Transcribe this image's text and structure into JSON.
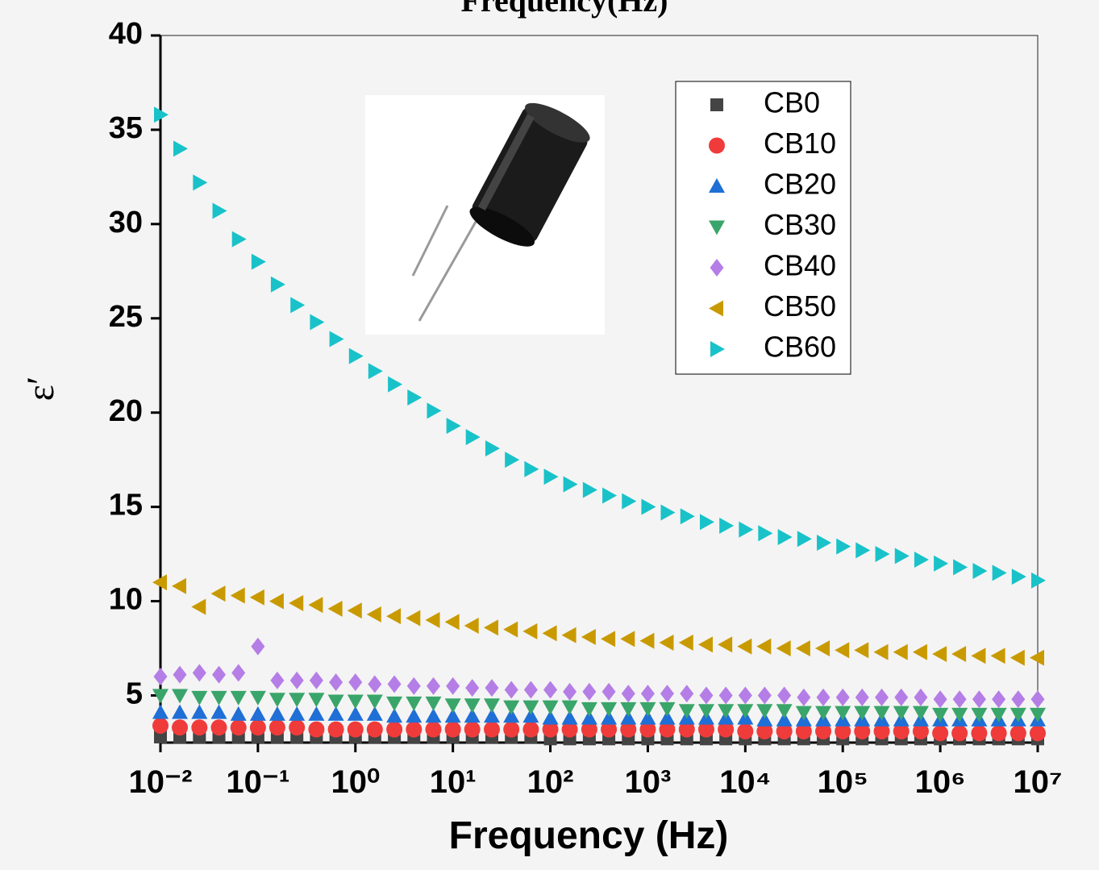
{
  "chart_data": {
    "type": "scatter",
    "title": "Frequency(Hz)",
    "x_label": "Frequency (Hz)",
    "y_label": "ε′",
    "x_log": true,
    "xlim": [
      0.01,
      10000000
    ],
    "ylim": [
      2.5,
      40
    ],
    "xticks": [
      {
        "value": 0.01,
        "label": "10⁻²"
      },
      {
        "value": 0.1,
        "label": "10⁻¹"
      },
      {
        "value": 1,
        "label": "10⁰"
      },
      {
        "value": 10,
        "label": "10¹"
      },
      {
        "value": 100,
        "label": "10²"
      },
      {
        "value": 1000,
        "label": "10³"
      },
      {
        "value": 10000,
        "label": "10⁴"
      },
      {
        "value": 100000,
        "label": "10⁵"
      },
      {
        "value": 1000000,
        "label": "10⁶"
      },
      {
        "value": 10000000,
        "label": "10⁷"
      }
    ],
    "yticks": [
      5,
      10,
      15,
      20,
      25,
      30,
      35,
      40
    ],
    "legend": "top-right",
    "x": [
      0.01,
      0.0158,
      0.0251,
      0.0398,
      0.0631,
      0.1,
      0.158,
      0.251,
      0.398,
      0.631,
      1,
      1.58,
      2.51,
      3.98,
      6.31,
      10,
      15.8,
      25.1,
      39.8,
      63.1,
      100,
      158,
      251,
      398,
      631,
      1000,
      1580,
      2510,
      3980,
      6310,
      10000,
      15800,
      25100,
      39800,
      63100,
      100000,
      158000,
      251000,
      398000,
      631000,
      1000000,
      1580000,
      2510000,
      3980000,
      6310000,
      10000000
    ],
    "series": [
      {
        "name": "CB0",
        "color": "#444444",
        "marker": "square",
        "values": [
          2.8,
          2.8,
          2.8,
          2.8,
          2.8,
          2.8,
          2.8,
          2.8,
          2.8,
          2.8,
          2.8,
          2.8,
          2.8,
          2.8,
          2.8,
          2.8,
          2.8,
          2.8,
          2.8,
          2.8,
          2.7,
          2.7,
          2.7,
          2.7,
          2.7,
          2.7,
          2.7,
          2.7,
          2.7,
          2.7,
          2.7,
          2.7,
          2.7,
          2.7,
          2.7,
          2.7,
          2.7,
          2.7,
          2.7,
          2.7,
          2.7,
          2.7,
          2.7,
          2.7,
          2.7,
          2.7
        ]
      },
      {
        "name": "CB10",
        "color": "#f03b3b",
        "marker": "circle",
        "values": [
          3.4,
          3.3,
          3.3,
          3.3,
          3.3,
          3.3,
          3.3,
          3.3,
          3.2,
          3.2,
          3.2,
          3.2,
          3.2,
          3.2,
          3.2,
          3.2,
          3.2,
          3.2,
          3.2,
          3.2,
          3.2,
          3.2,
          3.2,
          3.2,
          3.2,
          3.2,
          3.2,
          3.2,
          3.2,
          3.2,
          3.1,
          3.1,
          3.1,
          3.1,
          3.1,
          3.1,
          3.1,
          3.1,
          3.1,
          3.1,
          3.0,
          3.0,
          3.0,
          3.0,
          3.0,
          3.0
        ]
      },
      {
        "name": "CB20",
        "color": "#1f6fd6",
        "marker": "triangle-up",
        "values": [
          4.1,
          4.1,
          4.1,
          4.1,
          4.0,
          4.0,
          4.0,
          4.0,
          4.0,
          4.0,
          4.0,
          4.0,
          3.9,
          3.9,
          3.9,
          3.9,
          3.9,
          3.9,
          3.9,
          3.9,
          3.8,
          3.8,
          3.8,
          3.8,
          3.8,
          3.8,
          3.8,
          3.8,
          3.8,
          3.8,
          3.8,
          3.7,
          3.7,
          3.7,
          3.7,
          3.7,
          3.7,
          3.7,
          3.7,
          3.7,
          3.7,
          3.7,
          3.7,
          3.7,
          3.7,
          3.7
        ]
      },
      {
        "name": "CB30",
        "color": "#3aa56a",
        "marker": "triangle-down",
        "values": [
          5.0,
          5.0,
          4.9,
          4.9,
          4.9,
          4.9,
          4.8,
          4.8,
          4.8,
          4.7,
          4.7,
          4.7,
          4.6,
          4.6,
          4.6,
          4.5,
          4.5,
          4.5,
          4.4,
          4.4,
          4.4,
          4.4,
          4.3,
          4.3,
          4.3,
          4.3,
          4.3,
          4.2,
          4.2,
          4.2,
          4.2,
          4.2,
          4.2,
          4.1,
          4.1,
          4.1,
          4.1,
          4.1,
          4.1,
          4.1,
          4.0,
          4.0,
          4.0,
          4.0,
          4.0,
          4.0
        ]
      },
      {
        "name": "CB40",
        "color": "#b57ee6",
        "marker": "diamond",
        "values": [
          6.0,
          6.1,
          6.2,
          6.1,
          6.2,
          7.6,
          5.8,
          5.8,
          5.8,
          5.7,
          5.7,
          5.6,
          5.6,
          5.5,
          5.5,
          5.5,
          5.4,
          5.4,
          5.3,
          5.3,
          5.3,
          5.2,
          5.2,
          5.2,
          5.1,
          5.1,
          5.1,
          5.1,
          5.0,
          5.0,
          5.0,
          5.0,
          5.0,
          4.9,
          4.9,
          4.9,
          4.9,
          4.9,
          4.9,
          4.9,
          4.8,
          4.8,
          4.8,
          4.8,
          4.8,
          4.8
        ]
      },
      {
        "name": "CB50",
        "color": "#c99a00",
        "marker": "triangle-left",
        "values": [
          11.0,
          10.8,
          9.7,
          10.4,
          10.3,
          10.2,
          10.0,
          9.9,
          9.8,
          9.6,
          9.5,
          9.3,
          9.2,
          9.1,
          9.0,
          8.9,
          8.7,
          8.6,
          8.5,
          8.4,
          8.3,
          8.2,
          8.1,
          8.0,
          8.0,
          7.9,
          7.8,
          7.8,
          7.7,
          7.7,
          7.6,
          7.6,
          7.5,
          7.5,
          7.5,
          7.4,
          7.4,
          7.3,
          7.3,
          7.3,
          7.2,
          7.2,
          7.1,
          7.1,
          7.0,
          7.0
        ]
      },
      {
        "name": "CB60",
        "color": "#19c2c9",
        "marker": "triangle-right",
        "values": [
          35.8,
          34.0,
          32.2,
          30.7,
          29.2,
          28.0,
          26.8,
          25.7,
          24.8,
          23.9,
          23.0,
          22.2,
          21.5,
          20.8,
          20.1,
          19.3,
          18.7,
          18.1,
          17.5,
          17.0,
          16.6,
          16.2,
          15.9,
          15.6,
          15.3,
          15.0,
          14.7,
          14.5,
          14.2,
          14.0,
          13.8,
          13.6,
          13.4,
          13.3,
          13.1,
          12.9,
          12.7,
          12.5,
          12.4,
          12.2,
          12.0,
          11.8,
          11.6,
          11.5,
          11.3,
          11.1
        ]
      }
    ]
  }
}
